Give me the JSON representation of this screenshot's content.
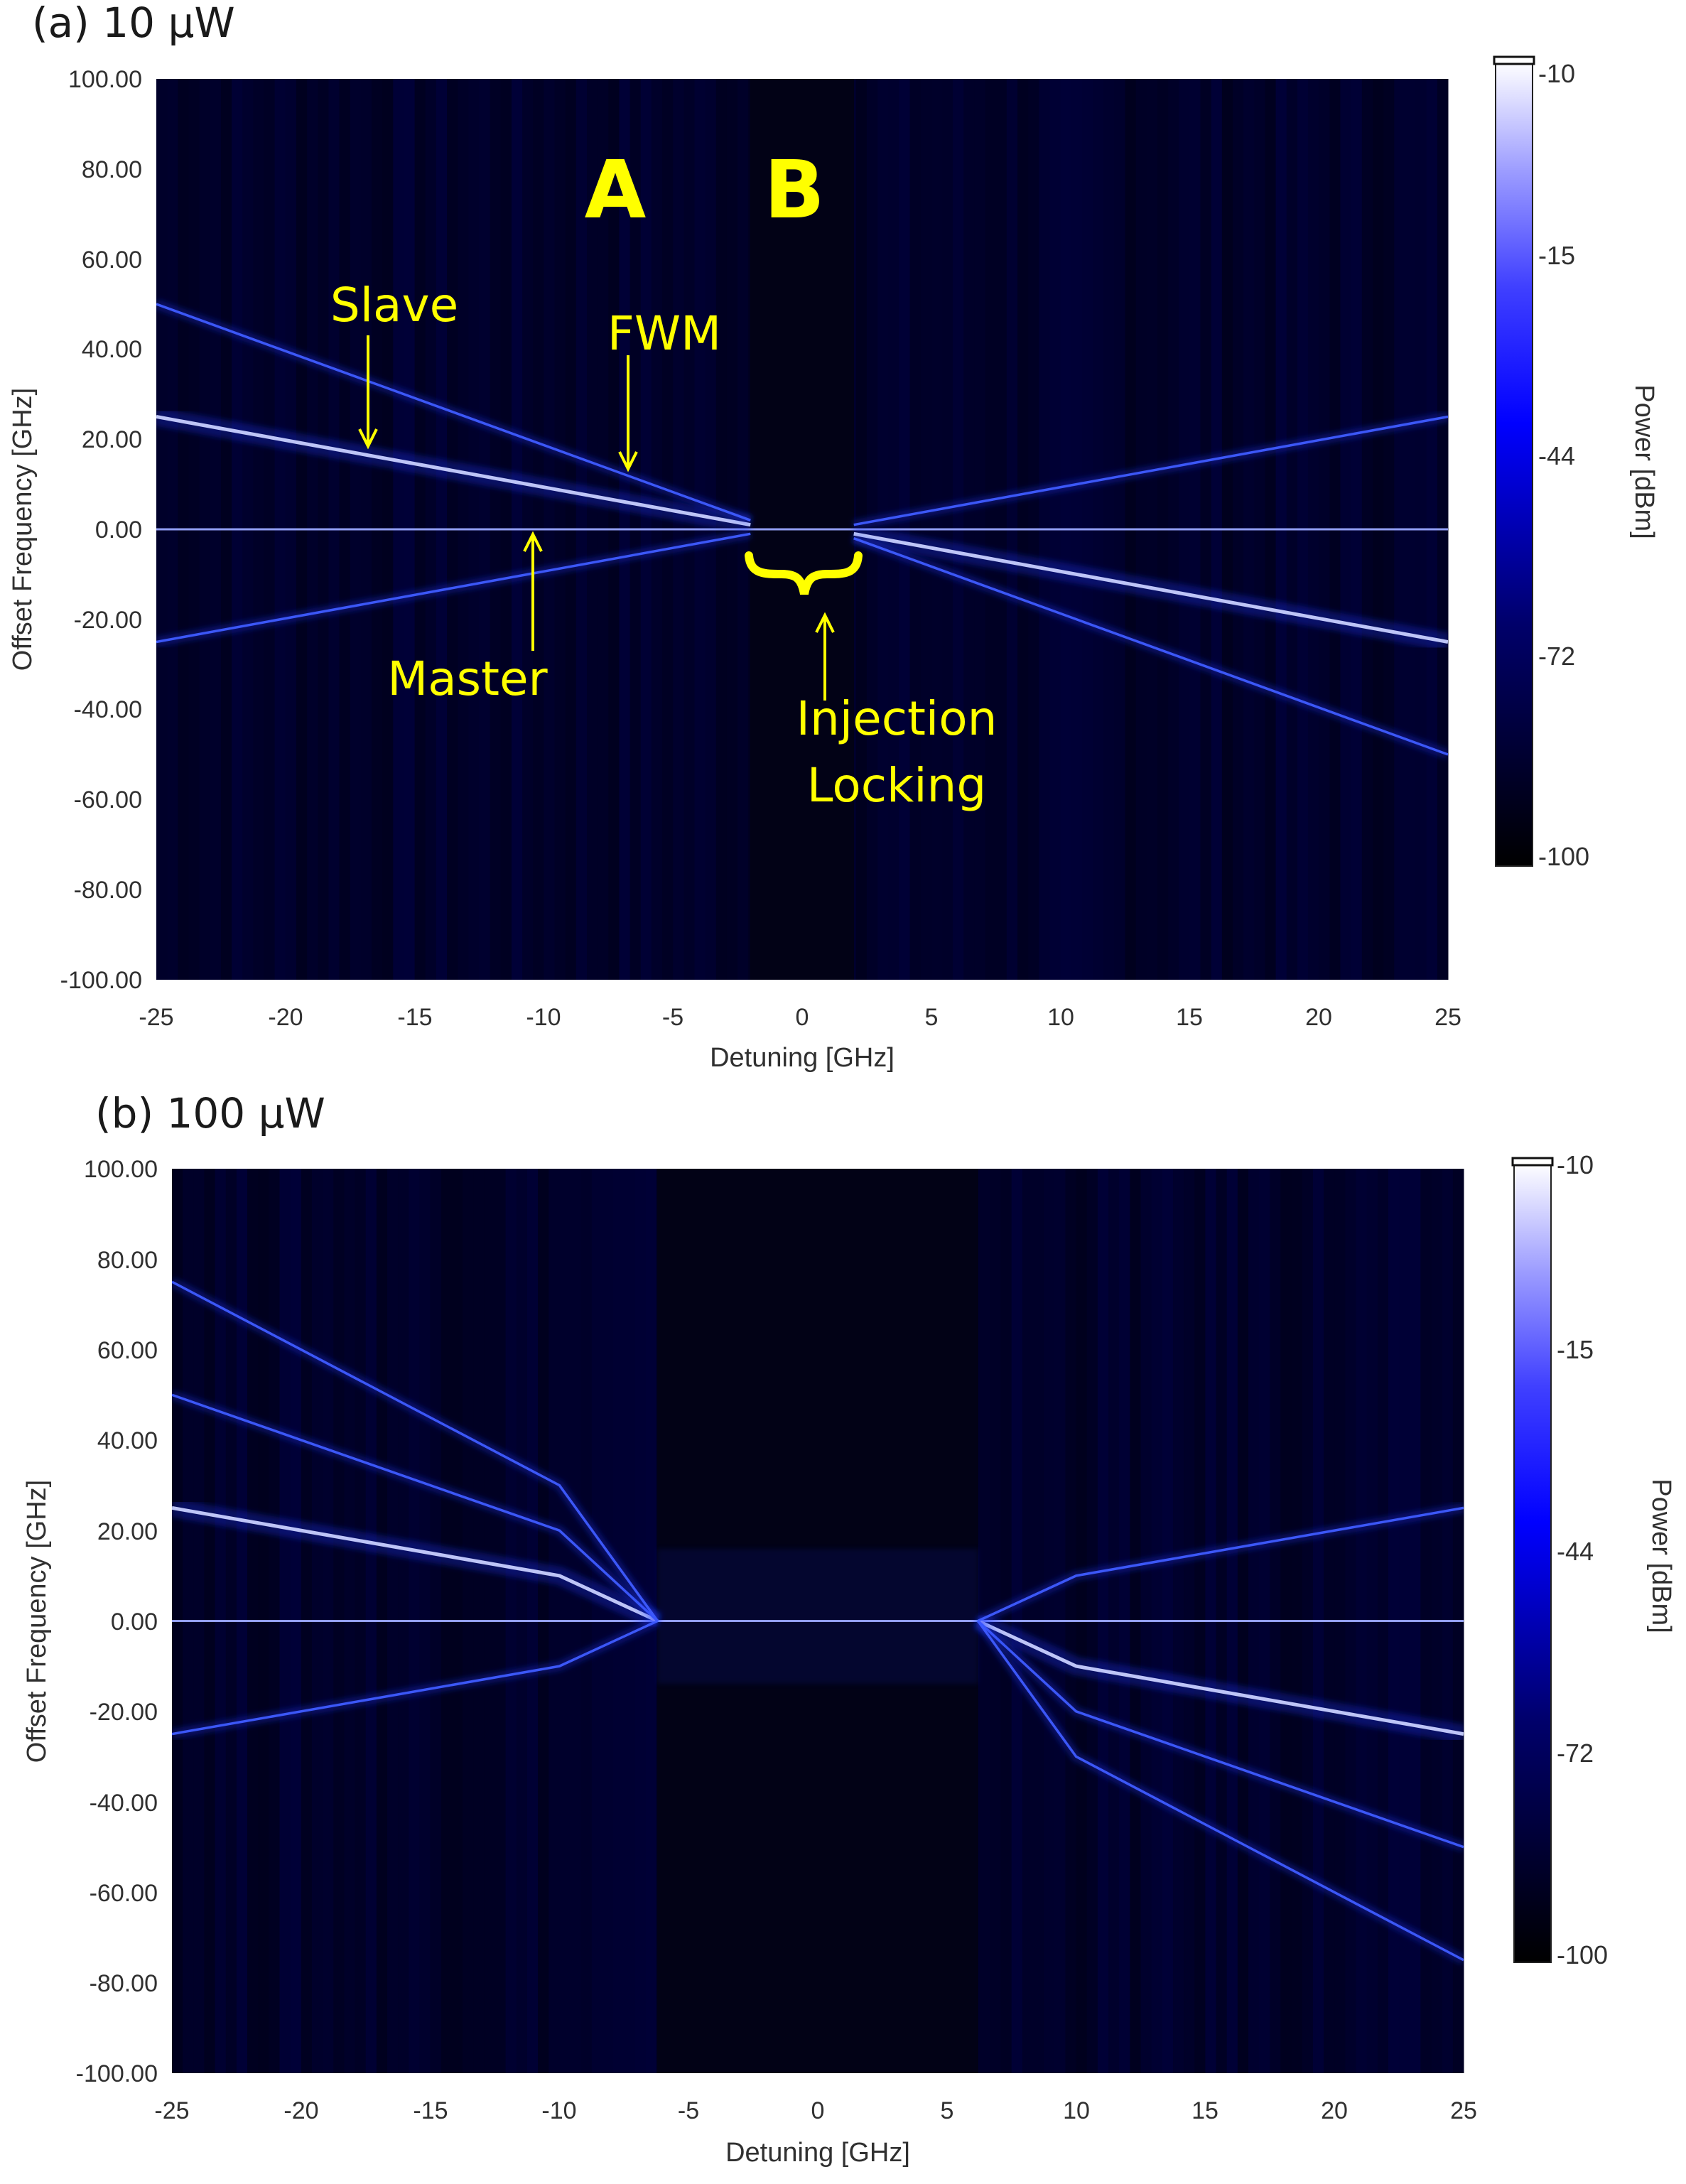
{
  "chart_data": [
    {
      "type": "heatmap",
      "panel": "(a)",
      "title": "(a) 10 μW",
      "xlabel": "Detuning [GHz]",
      "ylabel": "Offset Frequency [GHz]",
      "xlim": [
        -25,
        25
      ],
      "ylim": [
        -100,
        100
      ],
      "x_ticks": [
        "-25",
        "-20",
        "-15",
        "-10",
        "-5",
        "0",
        "5",
        "10",
        "15",
        "20",
        "25"
      ],
      "y_ticks": [
        "100.00",
        "80.00",
        "60.00",
        "40.00",
        "20.00",
        "0.00",
        "-20.00",
        "-40.00",
        "-60.00",
        "-80.00",
        "-100.00"
      ],
      "colorbar": {
        "label": "Power [dBm]",
        "ticks": [
          "-10",
          "-15",
          "-44",
          "-72",
          "-100"
        ],
        "range": [
          -100,
          -10
        ]
      },
      "locking_range": [
        -2,
        2
      ],
      "series": [
        {
          "name": "Master",
          "x": [
            -25,
            25
          ],
          "y": [
            0,
            0
          ]
        },
        {
          "name": "Slave",
          "x": [
            -25,
            -2,
            2,
            25
          ],
          "y": [
            25,
            1,
            -1,
            -25
          ]
        },
        {
          "name": "FWM",
          "x": [
            -25,
            -2,
            2,
            25
          ],
          "y": [
            50,
            2,
            -2,
            -50
          ]
        },
        {
          "x": [
            -25,
            -2,
            2,
            25
          ],
          "y": [
            -25,
            -1,
            1,
            25
          ]
        }
      ],
      "annotations": [
        {
          "text": "A"
        },
        {
          "text": "B"
        },
        {
          "text": "Slave"
        },
        {
          "text": "FWM"
        },
        {
          "text": "Master"
        },
        {
          "text": "Injection"
        },
        {
          "text": "Locking"
        }
      ]
    },
    {
      "type": "heatmap",
      "panel": "(b)",
      "title": "(b) 100 μW",
      "xlabel": "Detuning [GHz]",
      "ylabel": "Offset Frequency [GHz]",
      "xlim": [
        -25,
        25
      ],
      "ylim": [
        -100,
        100
      ],
      "x_ticks": [
        "-25",
        "-20",
        "-15",
        "-10",
        "-5",
        "0",
        "5",
        "10",
        "15",
        "20",
        "25"
      ],
      "y_ticks": [
        "100.00",
        "80.00",
        "60.00",
        "40.00",
        "20.00",
        "0.00",
        "-20.00",
        "-40.00",
        "-60.00",
        "-80.00",
        "-100.00"
      ],
      "colorbar": {
        "label": "Power [dBm]",
        "ticks": [
          "-10",
          "-15",
          "-44",
          "-72",
          "-100"
        ],
        "range": [
          -100,
          -10
        ]
      },
      "locking_range": [
        -6.2,
        6.2
      ],
      "series": [
        {
          "name": "Master",
          "x": [
            -25,
            25
          ],
          "y": [
            0,
            0
          ]
        },
        {
          "x": [
            -25,
            -10,
            -6.2,
            6.2,
            10,
            25
          ],
          "y": [
            25,
            10,
            0,
            0,
            -10,
            -25
          ]
        },
        {
          "x": [
            -25,
            -10,
            -6.2,
            6.2,
            10,
            25
          ],
          "y": [
            50,
            20,
            0,
            0,
            -20,
            -50
          ]
        },
        {
          "x": [
            -25,
            -10,
            -6.2,
            6.2,
            10,
            25
          ],
          "y": [
            75,
            30,
            0,
            0,
            -30,
            -75
          ]
        },
        {
          "x": [
            -25,
            -10,
            -6.2,
            6.2,
            10,
            25
          ],
          "y": [
            -25,
            -10,
            0,
            0,
            10,
            25
          ]
        }
      ]
    }
  ]
}
